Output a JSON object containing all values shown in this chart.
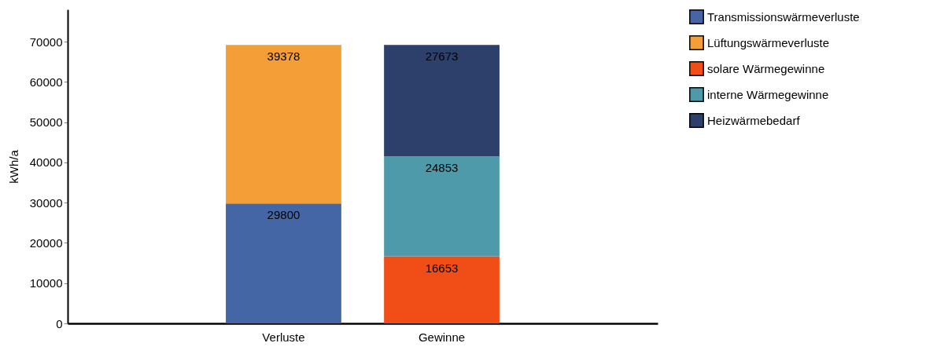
{
  "chart_data": {
    "type": "bar",
    "stacked": true,
    "ylabel": "kWh/a",
    "categories": [
      "Verluste",
      "Gewinne"
    ],
    "series": [
      {
        "name": "Transmissionswärmeverluste",
        "color": "#4466a5",
        "values": [
          29800,
          null
        ]
      },
      {
        "name": "Lüftungswärmeverluste",
        "color": "#f39e37",
        "values": [
          39378,
          null
        ]
      },
      {
        "name": "solare Wärmegewinne",
        "color": "#f04e16",
        "values": [
          null,
          16653
        ]
      },
      {
        "name": "interne Wärmegewinne",
        "color": "#4e9aab",
        "values": [
          null,
          24853
        ]
      },
      {
        "name": "Heizwärmebedarf",
        "color": "#2d3f6b",
        "values": [
          null,
          27673
        ]
      }
    ],
    "ylim": [
      0,
      78000
    ],
    "yticks": [
      0,
      10000,
      20000,
      30000,
      40000,
      50000,
      60000,
      70000
    ],
    "grid": false,
    "legend": "right",
    "data_labels": true
  }
}
